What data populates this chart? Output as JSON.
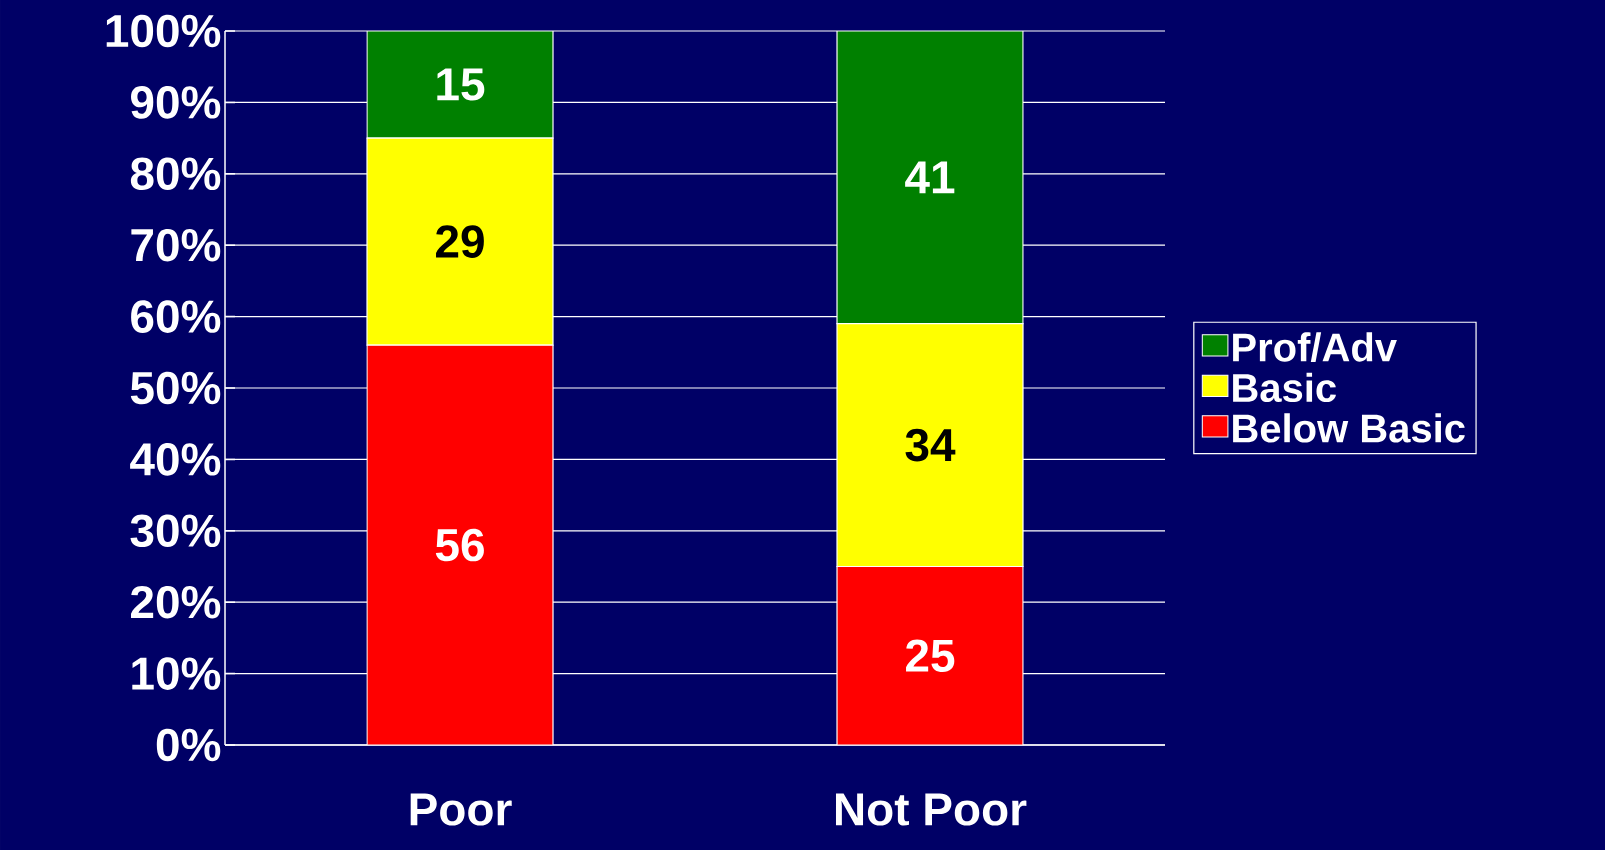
{
  "chart_data": {
    "type": "bar",
    "stacked": true,
    "categories": [
      "Poor",
      "Not Poor"
    ],
    "series": [
      {
        "name": "Below Basic",
        "color": "#ff0000",
        "values": [
          56,
          25
        ]
      },
      {
        "name": "Basic",
        "color": "#ffff00",
        "values": [
          29,
          34
        ]
      },
      {
        "name": "Prof/Adv",
        "color": "#008000",
        "values": [
          15,
          41
        ]
      }
    ],
    "ylim": [
      0,
      100
    ],
    "yticks": [
      {
        "value": 0,
        "label": "0%"
      },
      {
        "value": 10,
        "label": "10%"
      },
      {
        "value": 20,
        "label": "20%"
      },
      {
        "value": 30,
        "label": "30%"
      },
      {
        "value": 40,
        "label": "40%"
      },
      {
        "value": 50,
        "label": "50%"
      },
      {
        "value": 60,
        "label": "60%"
      },
      {
        "value": 70,
        "label": "70%"
      },
      {
        "value": 80,
        "label": "80%"
      },
      {
        "value": 90,
        "label": "90%"
      },
      {
        "value": 100,
        "label": "100%"
      }
    ],
    "grid": "y",
    "legend": "right",
    "data_labels": true
  }
}
